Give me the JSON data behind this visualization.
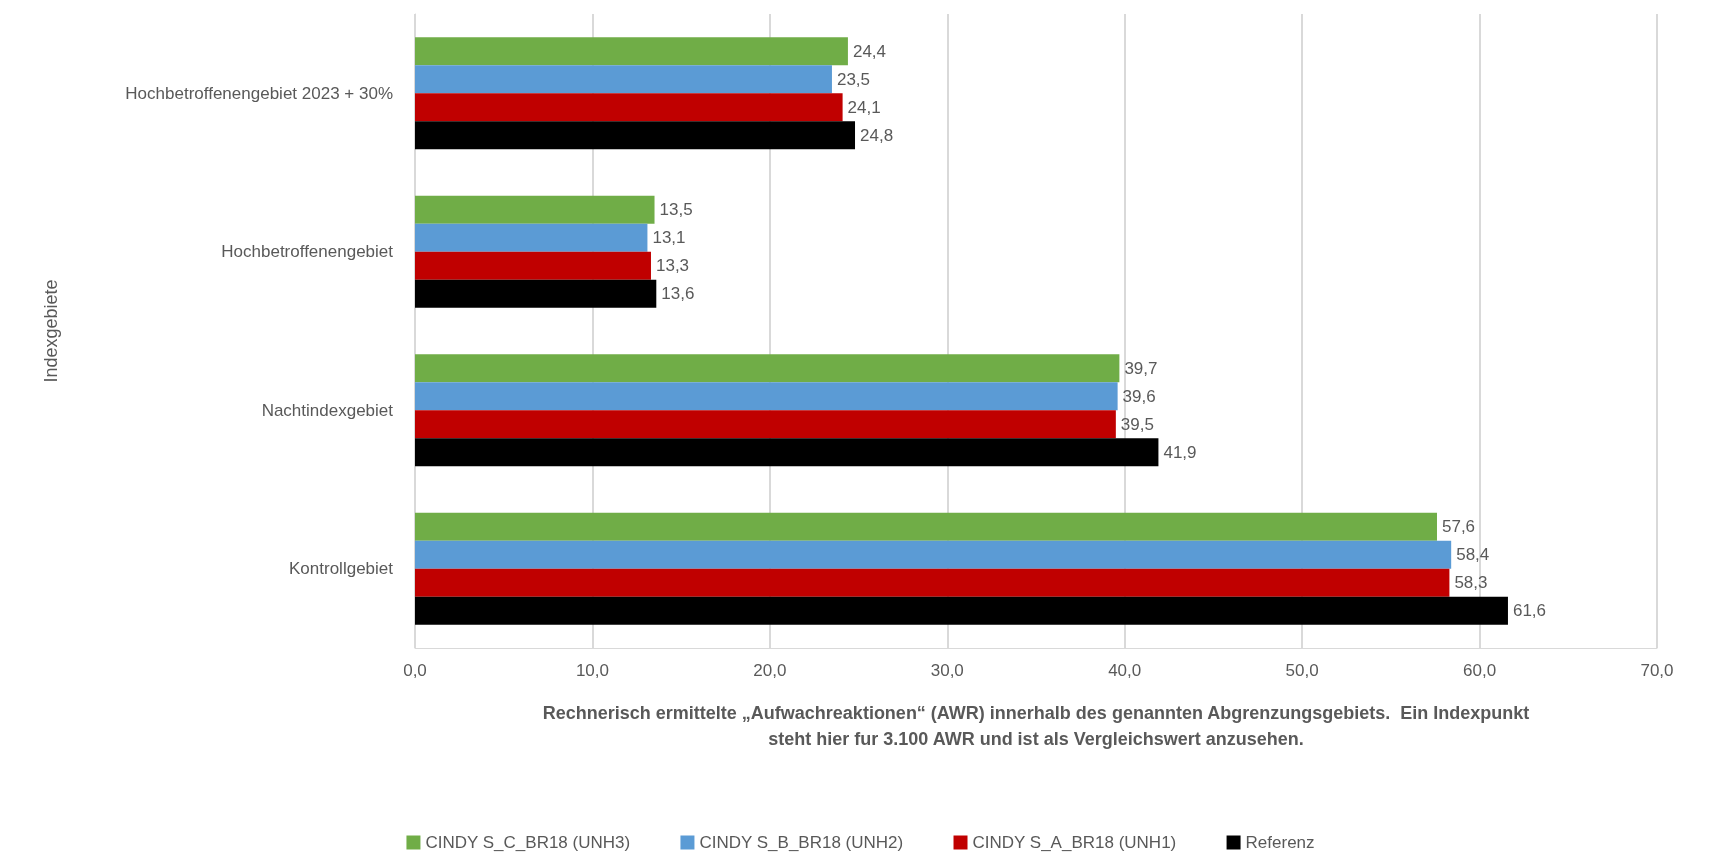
{
  "chart_data": {
    "type": "bar",
    "orientation": "horizontal",
    "xlabel": "Rechnerisch ermittelte „Aufwachreaktionen“ (AWR) innerhalb des genannten Abgrenzungsgebiets.  Ein Indexpunkt\nsteht hier fur 3.100 AWR und ist als Vergleichswert anzusehen.",
    "ylabel": "Indexgebiete",
    "categories": [
      "Hochbetroffenengebiet 2023 + 30%",
      "Hochbetroffenengebiet",
      "Nachtindexgebiet",
      "Kontrollgebiet"
    ],
    "series": [
      {
        "name": "CINDY S_C_BR18 (UNH3)",
        "color": "#70ad47",
        "values": [
          24.4,
          13.5,
          39.7,
          57.6
        ],
        "value_labels": [
          "24,4",
          "13,5",
          "39,7",
          "57,6"
        ]
      },
      {
        "name": "CINDY S_B_BR18 (UNH2)",
        "color": "#5b9bd5",
        "values": [
          23.5,
          13.1,
          39.6,
          58.4
        ],
        "value_labels": [
          "23,5",
          "13,1",
          "39,6",
          "58,4"
        ]
      },
      {
        "name": "CINDY S_A_BR18 (UNH1)",
        "color": "#c00000",
        "values": [
          24.1,
          13.3,
          39.5,
          58.3
        ],
        "value_labels": [
          "24,1",
          "13,3",
          "39,5",
          "58,3"
        ]
      },
      {
        "name": "Referenz",
        "color": "#000000",
        "values": [
          24.8,
          13.6,
          41.9,
          61.6
        ],
        "value_labels": [
          "24,8",
          "13,6",
          "41,9",
          "61,6"
        ]
      }
    ],
    "xlim": [
      0,
      70
    ],
    "xticks": [
      {
        "value": 0,
        "label": "0,0"
      },
      {
        "value": 10,
        "label": "10,0"
      },
      {
        "value": 20,
        "label": "20,0"
      },
      {
        "value": 30,
        "label": "30,0"
      },
      {
        "value": 40,
        "label": "40,0"
      },
      {
        "value": 50,
        "label": "50,0"
      },
      {
        "value": 60,
        "label": "60,0"
      },
      {
        "value": 70,
        "label": "70,0"
      }
    ],
    "grid": "x",
    "legend": "bottom"
  }
}
